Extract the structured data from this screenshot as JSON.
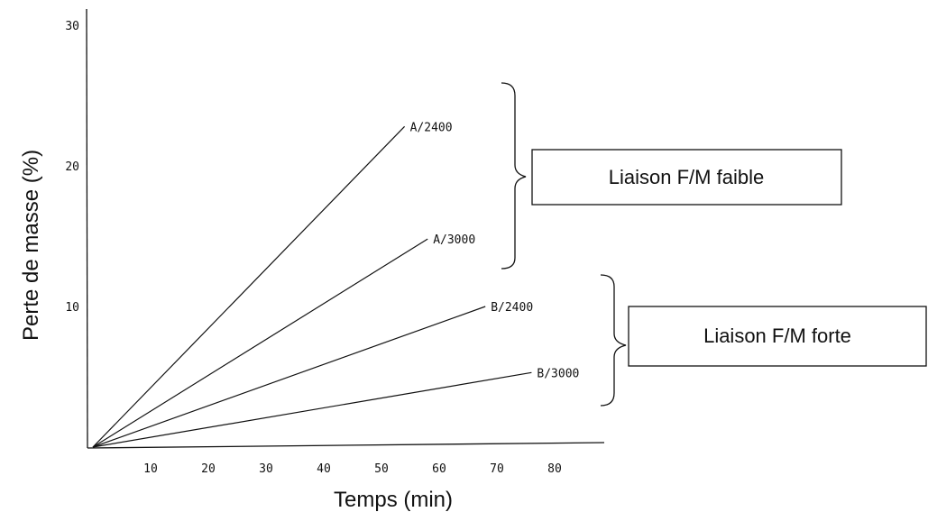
{
  "chart_data": {
    "type": "line",
    "title": "",
    "xlabel": "Temps (min)",
    "ylabel": "Perte de masse (%)",
    "xlim": [
      0,
      90
    ],
    "ylim": [
      0,
      30
    ],
    "xticks": [
      "10",
      "20",
      "30",
      "40",
      "50",
      "60",
      "70",
      "80"
    ],
    "yticks": [
      "10",
      "20",
      "30"
    ],
    "grid": false,
    "series": [
      {
        "name": "A/2400",
        "x": [
          0,
          54
        ],
        "y": [
          0,
          22.8
        ]
      },
      {
        "name": "A/3000",
        "x": [
          0,
          58
        ],
        "y": [
          0,
          14.8
        ]
      },
      {
        "name": "B/2400",
        "x": [
          0,
          68
        ],
        "y": [
          0,
          10
        ]
      },
      {
        "name": "B/3000",
        "x": [
          0,
          76
        ],
        "y": [
          0,
          5.3
        ]
      }
    ],
    "groups": [
      {
        "label": "Liaison F/M faible",
        "members": [
          "A/2400",
          "A/3000"
        ]
      },
      {
        "label": "Liaison F/M forte",
        "members": [
          "B/2400",
          "B/3000"
        ]
      }
    ]
  }
}
